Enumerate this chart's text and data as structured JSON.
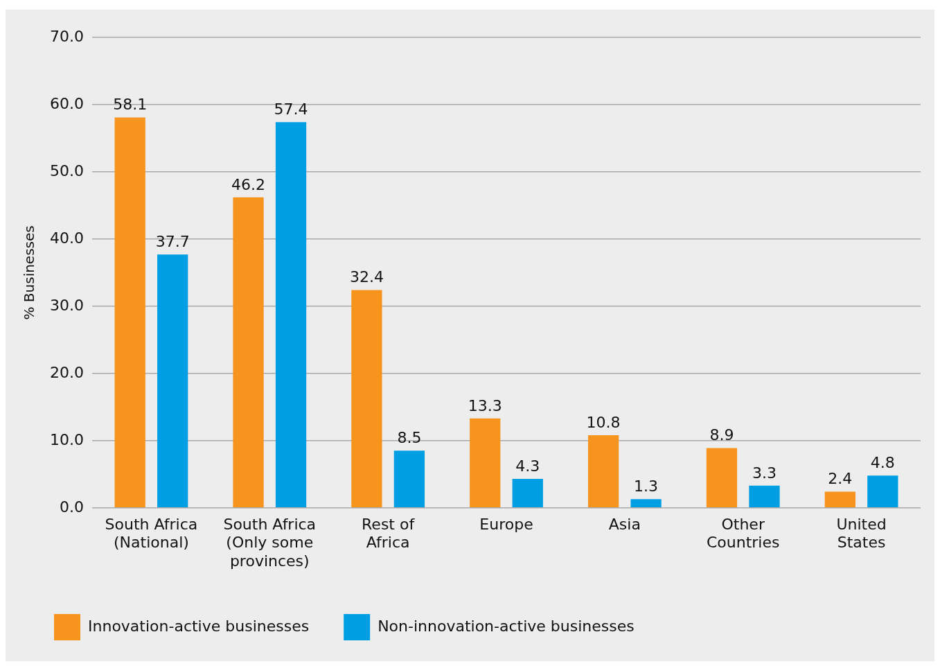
{
  "chart_data": {
    "type": "bar",
    "ylabel": "% Businesses",
    "categories": [
      "South Africa (National)",
      "South Africa (Only some provinces)",
      "Rest of Africa",
      "Europe",
      "Asia",
      "Other Countries",
      "United States"
    ],
    "series": [
      {
        "name": "Innovation-active businesses",
        "color": "#f7941d",
        "values": [
          58.1,
          46.2,
          32.4,
          13.3,
          10.8,
          8.9,
          2.4
        ]
      },
      {
        "name": "Non-innovation-active businesses",
        "color": "#009fe3",
        "values": [
          37.7,
          57.4,
          8.5,
          4.3,
          1.3,
          3.3,
          4.8
        ]
      }
    ],
    "ylim": [
      0,
      70
    ],
    "yticks": [
      {
        "value": 0,
        "label": "0.0"
      },
      {
        "value": 10,
        "label": "10.0"
      },
      {
        "value": 20,
        "label": "20.0"
      },
      {
        "value": 30,
        "label": "30.0"
      },
      {
        "value": 40,
        "label": "40.0"
      },
      {
        "value": 50,
        "label": "50.0"
      },
      {
        "value": 60,
        "label": "60.0"
      },
      {
        "value": 70,
        "label": "70.0"
      }
    ],
    "grid": "y",
    "legend": "bottom left",
    "data_labels": true
  }
}
